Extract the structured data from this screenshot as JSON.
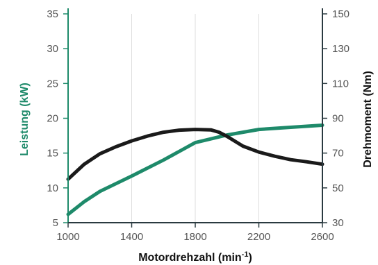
{
  "chart_data": {
    "type": "line",
    "title": "",
    "xlabel": "Motordrehzahl (min",
    "xlabel_sup": "-1",
    "xlabel_end": ")",
    "ylabel_left": "Leistung (kW)",
    "ylabel_right": "Drehmoment (Nm)",
    "xlim": [
      1000,
      2600
    ],
    "ylim_left": [
      5,
      35
    ],
    "ylim_right": [
      30,
      150
    ],
    "x_ticks": [
      1000,
      1400,
      1800,
      2200,
      2600
    ],
    "y_left_ticks": [
      5,
      10,
      15,
      20,
      25,
      30,
      35
    ],
    "y_right_ticks": [
      30,
      50,
      70,
      90,
      110,
      130,
      150
    ],
    "grid": "vertical",
    "legend": "none",
    "series": [
      {
        "axis": "left",
        "color": "#1e8a6a",
        "x": [
          1000,
          1100,
          1200,
          1400,
          1600,
          1800,
          2000,
          2200,
          2400,
          2600
        ],
        "y": [
          6.2,
          8.0,
          9.5,
          11.7,
          14.0,
          16.5,
          17.6,
          18.4,
          18.7,
          19.0
        ]
      },
      {
        "axis": "right",
        "color": "#1a1a1a",
        "x": [
          1000,
          1100,
          1200,
          1300,
          1400,
          1500,
          1600,
          1700,
          1800,
          1900,
          1950,
          2000,
          2100,
          2200,
          2300,
          2400,
          2500,
          2600
        ],
        "y": [
          55.0,
          63.5,
          69.6,
          73.6,
          77.0,
          79.8,
          82.0,
          83.2,
          83.6,
          83.3,
          82.0,
          79.6,
          74.0,
          70.6,
          68.2,
          66.2,
          65.0,
          63.6
        ]
      }
    ],
    "colors": {
      "left_axis": "#1e8a6a",
      "right_axis": "#2a3a40",
      "grid": "#dddddd",
      "tick_text": "#555555",
      "xlabel": "#111111"
    }
  }
}
